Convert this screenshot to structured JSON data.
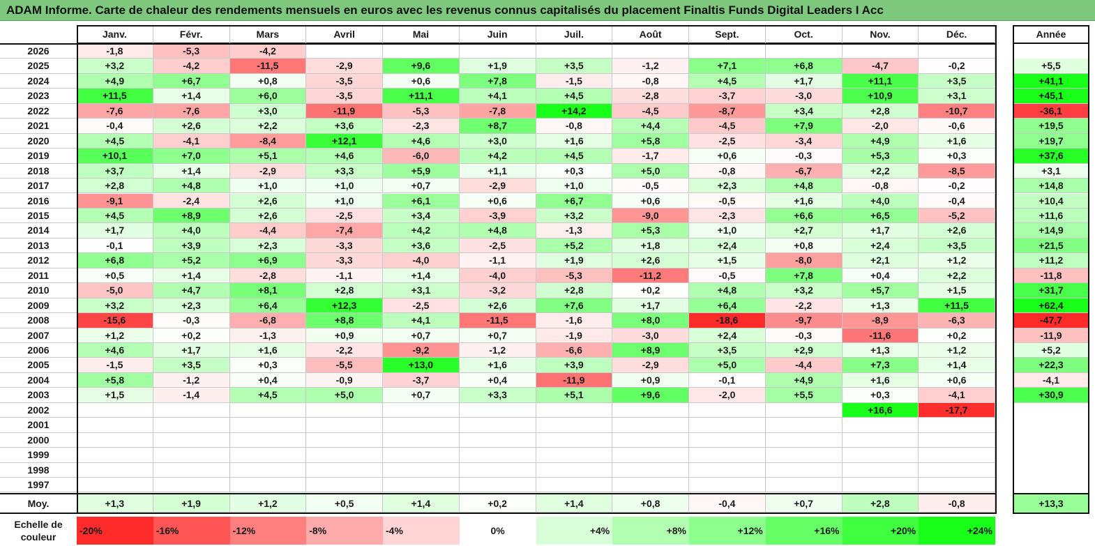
{
  "chart_data": {
    "type": "heatmap",
    "title": "ADAM Informe. Carte de chaleur des rendements mensuels en euros avec les revenus connus capitalisés du placement Finaltis Funds Digital Leaders I Acc",
    "months": [
      "Janv.",
      "Févr.",
      "Mars",
      "Avril",
      "Mai",
      "Juin",
      "Juil.",
      "Août",
      "Sept.",
      "Oct.",
      "Nov.",
      "Déc."
    ],
    "year_header": "Année",
    "rows": [
      {
        "year": "2026",
        "values": [
          "-1,8",
          "-5,3",
          "-4,2",
          "",
          "",
          "",
          "",
          "",
          "",
          "",
          "",
          ""
        ],
        "annual": ""
      },
      {
        "year": "2025",
        "values": [
          "+3,2",
          "-4,2",
          "-11,5",
          "-2,9",
          "+9,6",
          "+1,9",
          "+3,5",
          "-1,2",
          "+7,1",
          "+6,8",
          "-4,7",
          "-0,2"
        ],
        "annual": "+5,5"
      },
      {
        "year": "2024",
        "values": [
          "+4,9",
          "+6,7",
          "+0,8",
          "-3,5",
          "+0,6",
          "+7,8",
          "-1,5",
          "-0,8",
          "+4,5",
          "+1,7",
          "+11,1",
          "+3,5"
        ],
        "annual": "+41,1"
      },
      {
        "year": "2023",
        "values": [
          "+11,5",
          "+1,4",
          "+6,0",
          "-3,5",
          "+11,1",
          "+4,1",
          "+4,5",
          "-2,8",
          "-3,7",
          "-3,0",
          "+10,9",
          "+3,1"
        ],
        "annual": "+45,1"
      },
      {
        "year": "2022",
        "values": [
          "-7,6",
          "-7,6",
          "+3,0",
          "-11,9",
          "-5,3",
          "-7,8",
          "+14,2",
          "-4,5",
          "-8,7",
          "+3,4",
          "+2,8",
          "-10,7"
        ],
        "annual": "-36,1"
      },
      {
        "year": "2021",
        "values": [
          "-0,4",
          "+2,6",
          "+2,2",
          "+3,6",
          "-2,3",
          "+8,7",
          "-0,8",
          "+4,4",
          "-4,5",
          "+7,9",
          "-2,0",
          "-0,6"
        ],
        "annual": "+19,5"
      },
      {
        "year": "2020",
        "values": [
          "+4,5",
          "-4,1",
          "-8,4",
          "+12,1",
          "+4,6",
          "+3,0",
          "+1,6",
          "+5,8",
          "-2,5",
          "-3,4",
          "+4,9",
          "+1,6"
        ],
        "annual": "+19,7"
      },
      {
        "year": "2019",
        "values": [
          "+10,1",
          "+7,0",
          "+5,1",
          "+4,6",
          "-6,0",
          "+4,2",
          "+4,5",
          "-1,7",
          "+0,6",
          "-0,3",
          "+5,3",
          "+0,3"
        ],
        "annual": "+37,6"
      },
      {
        "year": "2018",
        "values": [
          "+3,7",
          "+1,4",
          "-2,9",
          "+3,3",
          "+5,9",
          "+1,1",
          "+0,3",
          "+5,0",
          "-0,8",
          "-6,7",
          "+2,2",
          "-8,5"
        ],
        "annual": "+3,1"
      },
      {
        "year": "2017",
        "values": [
          "+2,8",
          "+4,8",
          "+1,0",
          "+1,0",
          "+0,7",
          "-2,9",
          "+1,0",
          "-0,5",
          "+2,3",
          "+4,8",
          "-0,8",
          "-0,2"
        ],
        "annual": "+14,8"
      },
      {
        "year": "2016",
        "values": [
          "-9,1",
          "-2,4",
          "+2,6",
          "+1,0",
          "+6,1",
          "+0,6",
          "+6,7",
          "+0,6",
          "-0,5",
          "+1,6",
          "+4,0",
          "-0,4"
        ],
        "annual": "+10,4"
      },
      {
        "year": "2015",
        "values": [
          "+4,5",
          "+8,9",
          "+2,6",
          "-2,5",
          "+3,4",
          "-3,9",
          "+3,2",
          "-9,0",
          "-2,3",
          "+6,6",
          "+6,5",
          "-5,2"
        ],
        "annual": "+11,6"
      },
      {
        "year": "2014",
        "values": [
          "+1,7",
          "+4,0",
          "-4,4",
          "-7,4",
          "+4,2",
          "+4,8",
          "-1,3",
          "+5,3",
          "+1,0",
          "+2,7",
          "+1,7",
          "+2,6"
        ],
        "annual": "+14,9"
      },
      {
        "year": "2013",
        "values": [
          "-0,1",
          "+3,9",
          "+2,3",
          "-3,3",
          "+3,6",
          "-2,5",
          "+5,2",
          "+1,8",
          "+2,4",
          "+0,8",
          "+2,4",
          "+3,5"
        ],
        "annual": "+21,5"
      },
      {
        "year": "2012",
        "values": [
          "+6,8",
          "+5,2",
          "+6,9",
          "-3,3",
          "-4,0",
          "-1,1",
          "+1,9",
          "+2,6",
          "+1,5",
          "-8,0",
          "+2,1",
          "+1,2"
        ],
        "annual": "+11,2"
      },
      {
        "year": "2011",
        "values": [
          "+0,5",
          "+1,4",
          "-2,8",
          "-1,1",
          "+1,4",
          "-4,0",
          "-5,3",
          "-11,2",
          "-0,5",
          "+7,8",
          "+0,4",
          "+2,2"
        ],
        "annual": "-11,8"
      },
      {
        "year": "2010",
        "values": [
          "-5,0",
          "+4,7",
          "+8,1",
          "+2,8",
          "+3,1",
          "-3,2",
          "+2,8",
          "+0,2",
          "+4,8",
          "+3,2",
          "+5,7",
          "+1,5"
        ],
        "annual": "+31,7"
      },
      {
        "year": "2009",
        "values": [
          "+3,2",
          "+2,3",
          "+6,4",
          "+12,3",
          "-2,5",
          "+2,6",
          "+7,6",
          "+1,7",
          "+6,4",
          "-2,2",
          "+1,3",
          "+11,5"
        ],
        "annual": "+62,4"
      },
      {
        "year": "2008",
        "values": [
          "-15,6",
          "-0,3",
          "-6,8",
          "+8,8",
          "+4,1",
          "-11,5",
          "-1,6",
          "+8,0",
          "-18,6",
          "-9,7",
          "-8,9",
          "-6,3"
        ],
        "annual": "-47,7"
      },
      {
        "year": "2007",
        "values": [
          "+1,2",
          "+0,2",
          "-1,3",
          "+0,9",
          "+0,7",
          "+0,7",
          "-1,9",
          "-3,0",
          "+2,4",
          "-0,3",
          "-11,6",
          "+0,2"
        ],
        "annual": "-11,9"
      },
      {
        "year": "2006",
        "values": [
          "+4,6",
          "+1,7",
          "+1,6",
          "-2,2",
          "-9,2",
          "-1,2",
          "-6,6",
          "+8,9",
          "+3,5",
          "+2,9",
          "+1,3",
          "+1,2"
        ],
        "annual": "+5,2"
      },
      {
        "year": "2005",
        "values": [
          "-1,5",
          "+3,5",
          "+0,3",
          "-5,5",
          "+13,0",
          "+1,6",
          "+3,9",
          "-2,9",
          "+5,0",
          "-4,4",
          "+7,3",
          "+1,4"
        ],
        "annual": "+22,3"
      },
      {
        "year": "2004",
        "values": [
          "+5,8",
          "-1,2",
          "+0,4",
          "-0,9",
          "-3,7",
          "+0,4",
          "-11,9",
          "+0,9",
          "-0,1",
          "+4,9",
          "+1,6",
          "+0,6"
        ],
        "annual": "-4,1"
      },
      {
        "year": "2003",
        "values": [
          "+1,5",
          "-1,4",
          "+4,5",
          "+5,0",
          "+0,7",
          "+3,3",
          "+5,1",
          "+9,6",
          "-2,0",
          "+5,5",
          "+0,3",
          "-4,1"
        ],
        "annual": "+30,9"
      },
      {
        "year": "2002",
        "values": [
          "",
          "",
          "",
          "",
          "",
          "",
          "",
          "",
          "",
          "",
          "+16,6",
          "-17,7"
        ],
        "annual": ""
      },
      {
        "year": "2001",
        "values": [
          "",
          "",
          "",
          "",
          "",
          "",
          "",
          "",
          "",
          "",
          "",
          ""
        ],
        "annual": ""
      },
      {
        "year": "2000",
        "values": [
          "",
          "",
          "",
          "",
          "",
          "",
          "",
          "",
          "",
          "",
          "",
          ""
        ],
        "annual": ""
      },
      {
        "year": "1999",
        "values": [
          "",
          "",
          "",
          "",
          "",
          "",
          "",
          "",
          "",
          "",
          "",
          ""
        ],
        "annual": ""
      },
      {
        "year": "1998",
        "values": [
          "",
          "",
          "",
          "",
          "",
          "",
          "",
          "",
          "",
          "",
          "",
          ""
        ],
        "annual": ""
      },
      {
        "year": "1997",
        "values": [
          "",
          "",
          "",
          "",
          "",
          "",
          "",
          "",
          "",
          "",
          "",
          ""
        ],
        "annual": ""
      }
    ],
    "average": {
      "label": "Moy.",
      "values": [
        "+1,3",
        "+1,9",
        "+1,2",
        "+0,5",
        "+1,4",
        "+0,2",
        "+1,4",
        "+0,8",
        "-0,4",
        "+0,7",
        "+2,8",
        "-0,8"
      ],
      "annual": "+13,3"
    },
    "scale": {
      "label_line1": "Echelle de",
      "label_line2": "couleur",
      "steps": [
        "-20%",
        "-16%",
        "-12%",
        "-8%",
        "-4%",
        "0%",
        "+4%",
        "+8%",
        "+12%",
        "+16%",
        "+20%",
        "+24%"
      ]
    },
    "colors": {
      "negative_max": "#ff2a2a",
      "positive_max": "#19ff19",
      "neutral": "#ffffff",
      "title_bg": "#7ec87e"
    }
  }
}
